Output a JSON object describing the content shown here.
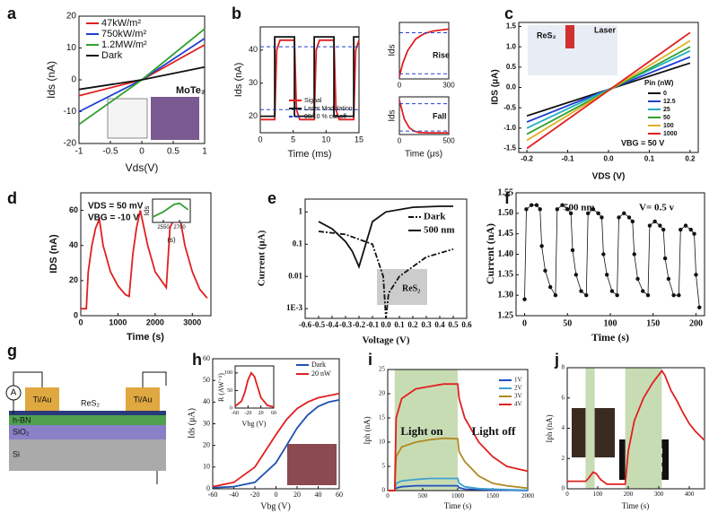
{
  "chart_data": [
    {
      "type": "line",
      "panel": "a",
      "xlabel": "Vds(V)",
      "ylabel": "Ids (nA)",
      "xlim": [
        -1,
        1
      ],
      "ylim": [
        -20,
        20
      ],
      "xticks": [
        -1,
        -0.5,
        0,
        0.5,
        1
      ],
      "yticks": [
        -20,
        -10,
        0,
        10,
        20
      ],
      "legend": "upper left",
      "annotations": [
        "MoTe₂"
      ],
      "series": [
        {
          "name": "47kW/m²",
          "color": "#e02020",
          "x": [
            -1,
            0,
            1
          ],
          "values": [
            -5,
            0,
            11
          ]
        },
        {
          "name": "750kW/m²",
          "color": "#2040d0",
          "x": [
            -1,
            0,
            1
          ],
          "values": [
            -10,
            0,
            13
          ]
        },
        {
          "name": "1.2MW/m²",
          "color": "#30a030",
          "x": [
            -1,
            0,
            1
          ],
          "values": [
            -14,
            0,
            16
          ]
        },
        {
          "name": "Dark",
          "color": "#111111",
          "x": [
            -1,
            0,
            1
          ],
          "values": [
            -3,
            0,
            4
          ]
        }
      ]
    },
    {
      "type": "line",
      "panel": "b",
      "xlabel": "Time (ms)",
      "ylabel": "Ids (nA)",
      "xlim": [
        0,
        15
      ],
      "ylim": [
        15,
        47
      ],
      "xticks": [
        0,
        5,
        10,
        15
      ],
      "yticks": [
        20,
        30,
        40
      ],
      "legend": "lower right",
      "series": [
        {
          "name": "Signal",
          "color": "#e02020",
          "x": [
            0,
            2.2,
            2.5,
            3,
            5.2,
            5.5,
            6,
            8.2,
            8.5,
            9,
            11.2,
            11.5,
            12,
            14.2,
            14.5,
            15
          ],
          "values": [
            19,
            19,
            40,
            43,
            43,
            22,
            19,
            19,
            40,
            43,
            43,
            22,
            19,
            19,
            40,
            43
          ]
        },
        {
          "name": "Laser Modulation",
          "color": "#111111",
          "x": [
            0,
            2.2,
            2.2,
            5.2,
            5.2,
            8.2,
            8.2,
            11.2,
            11.2,
            14.2,
            14.2,
            15
          ],
          "values": [
            20,
            20,
            44,
            44,
            20,
            20,
            44,
            44,
            20,
            20,
            44,
            44
          ]
        },
        {
          "name": "90/10 % cut-off",
          "color": "#2040d0",
          "style": "dashed",
          "levels": [
            22,
            41
          ]
        }
      ]
    },
    {
      "type": "line",
      "ylabel": "Ids",
      "xlim": [
        0,
        300
      ],
      "ylim": [
        0,
        1.1
      ],
      "xticks": [
        0,
        300
      ],
      "annotations": [
        "Rise"
      ],
      "series": [
        {
          "color": "#e02020",
          "x": [
            0,
            20,
            50,
            100,
            150,
            200,
            300
          ],
          "values": [
            0.05,
            0.3,
            0.55,
            0.78,
            0.88,
            0.93,
            0.97
          ]
        },
        {
          "color": "#2040d0",
          "style": "dashed",
          "levels": [
            0.1,
            0.9
          ]
        }
      ]
    },
    {
      "type": "line",
      "xlabel": "Time (μs)",
      "ylabel": "Ids",
      "xlim": [
        0,
        500
      ],
      "ylim": [
        0,
        1.1
      ],
      "xticks": [
        0,
        500
      ],
      "annotations": [
        "Fall"
      ],
      "series": [
        {
          "color": "#e02020",
          "x": [
            0,
            50,
            100,
            150,
            200,
            300,
            500
          ],
          "values": [
            1,
            0.45,
            0.2,
            0.1,
            0.06,
            0.05,
            0.05
          ]
        },
        {
          "color": "#2040d0",
          "style": "dashed",
          "levels": [
            0.1,
            0.9
          ]
        }
      ]
    },
    {
      "type": "line",
      "panel": "c",
      "xlabel": "VDS (V)",
      "ylabel": "IDS (μA)",
      "xlim": [
        -0.22,
        0.22
      ],
      "ylim": [
        -1.6,
        1.6
      ],
      "xticks": [
        -0.2,
        -0.1,
        {
          "value": 0,
          "label": "0.0"
        },
        0.1,
        0.2
      ],
      "yticks": [
        -1.5,
        {
          "value": -1,
          "label": "-1.0"
        },
        -0.5,
        {
          "value": 0,
          "label": "0.0"
        },
        0.5,
        {
          "value": 1,
          "label": "1.0"
        },
        1.5
      ],
      "legend": "right",
      "legend_title": "Pin (nW)",
      "annotations": [
        "ReS₂",
        "Laser",
        "VBG = 50 V"
      ],
      "series": [
        {
          "name": "0",
          "color": "#111111",
          "x": [
            -0.2,
            0.2
          ],
          "values": [
            -0.7,
            0.6
          ]
        },
        {
          "name": "12.5",
          "color": "#2040d0",
          "x": [
            -0.2,
            0.2
          ],
          "values": [
            -0.85,
            0.75
          ]
        },
        {
          "name": "25",
          "color": "#20b0c0",
          "x": [
            -0.2,
            0.2
          ],
          "values": [
            -1,
            0.9
          ]
        },
        {
          "name": "50",
          "color": "#30a030",
          "x": [
            -0.2,
            0.2
          ],
          "values": [
            -1.15,
            1
          ]
        },
        {
          "name": "100",
          "color": "#e0b020",
          "x": [
            -0.2,
            0.2
          ],
          "values": [
            -1.3,
            1.15
          ]
        },
        {
          "name": "1000",
          "color": "#e02020",
          "x": [
            -0.2,
            0.2
          ],
          "values": [
            -1.5,
            1.35
          ]
        }
      ]
    },
    {
      "type": "line",
      "panel": "d",
      "xlabel": "Time (s)",
      "ylabel": "IDS (nA)",
      "xlim": [
        0,
        3500
      ],
      "ylim": [
        0,
        70
      ],
      "xticks": [
        0,
        1000,
        2000,
        3000
      ],
      "yticks": [
        0,
        20,
        40,
        60
      ],
      "annotations": [
        "VDS = 50 mV",
        "VBG = -10 V"
      ],
      "series": [
        {
          "color": "#e02020",
          "x": [
            0,
            150,
            200,
            300,
            400,
            500,
            600,
            800,
            1000,
            1200,
            1300,
            1400,
            1500,
            1600,
            1800,
            2000,
            2300,
            2400,
            2500,
            2600,
            2650,
            2800,
            3000,
            3200,
            3400
          ],
          "values": [
            4,
            4,
            25,
            40,
            50,
            55,
            40,
            25,
            17,
            12,
            11,
            35,
            50,
            60,
            40,
            25,
            16,
            50,
            55,
            60,
            58,
            40,
            25,
            15,
            10
          ]
        }
      ]
    },
    {
      "type": "line",
      "xlabel": "(s)",
      "ylabel": "Ids",
      "xlim": [
        2450,
        2800
      ],
      "ylim": [
        40,
        62
      ],
      "xticks": [
        2550,
        2700
      ],
      "series": [
        {
          "color": "#30a030",
          "x": [
            2450,
            2550,
            2650,
            2700,
            2780
          ],
          "values": [
            45,
            50,
            57,
            58,
            52
          ]
        }
      ]
    },
    {
      "type": "line",
      "panel": "e",
      "xlabel": "Voltage (V)",
      "ylabel": "Current (μA)",
      "ylog": true,
      "xlim": [
        -0.6,
        0.6
      ],
      "ylim": [
        0.0005,
        2.5
      ],
      "xticks": [
        -0.6,
        -0.5,
        -0.4,
        -0.3,
        -0.2,
        -0.1,
        {
          "value": 0,
          "label": "0.0"
        },
        0.1,
        0.2,
        0.3,
        0.4,
        0.5,
        0.6
      ],
      "yticks": [
        {
          "value": 0.001,
          "label": "1E-3"
        },
        0.01,
        0.1,
        1
      ],
      "legend": "upper right",
      "annotations": [
        "ReS₂"
      ],
      "series": [
        {
          "name": "Dark",
          "color": "#111111",
          "style": "dashdot",
          "x": [
            -0.5,
            -0.3,
            -0.1,
            -0.02,
            0,
            0.02,
            0.1,
            0.3,
            0.5
          ],
          "values": [
            0.25,
            0.2,
            0.1,
            0.01,
            0.0005,
            0.003,
            0.01,
            0.04,
            0.07
          ]
        },
        {
          "name": "500 nm",
          "color": "#111111",
          "x": [
            -0.5,
            -0.4,
            -0.3,
            -0.25,
            -0.2,
            -0.15,
            -0.1,
            0,
            0.2,
            0.4,
            0.5
          ],
          "values": [
            0.5,
            0.3,
            0.12,
            0.06,
            0.02,
            0.1,
            0.5,
            1,
            1.4,
            1.5,
            1.5
          ]
        }
      ]
    },
    {
      "type": "line",
      "panel": "f",
      "xlabel": "Time (s)",
      "ylabel": "Current (nA)",
      "markers": true,
      "xlim": [
        -10,
        210
      ],
      "ylim": [
        1.25,
        1.55
      ],
      "xticks": [
        0,
        50,
        100,
        150,
        200
      ],
      "yticks": [
        1.25,
        {
          "value": 1.3,
          "label": "1.30"
        },
        1.35,
        {
          "value": 1.4,
          "label": "1.40"
        },
        1.45,
        {
          "value": 1.5,
          "label": "1.50"
        },
        1.55
      ],
      "annotations": [
        "500 nm",
        "V= 0.5 v"
      ],
      "series": [
        {
          "color": "#111111",
          "x": [
            0,
            2,
            8,
            14,
            18,
            20,
            24,
            30,
            36,
            38,
            44,
            50,
            54,
            56,
            60,
            66,
            72,
            74,
            80,
            86,
            90,
            92,
            96,
            102,
            108,
            110,
            116,
            122,
            126,
            128,
            132,
            138,
            144,
            146,
            152,
            158,
            162,
            164,
            168,
            174,
            180,
            182,
            188,
            194,
            198,
            200,
            204
          ],
          "values": [
            1.29,
            1.51,
            1.52,
            1.52,
            1.51,
            1.42,
            1.36,
            1.32,
            1.3,
            1.51,
            1.52,
            1.51,
            1.5,
            1.41,
            1.35,
            1.31,
            1.3,
            1.5,
            1.51,
            1.5,
            1.49,
            1.4,
            1.35,
            1.31,
            1.3,
            1.49,
            1.5,
            1.49,
            1.48,
            1.4,
            1.34,
            1.31,
            1.3,
            1.47,
            1.48,
            1.47,
            1.46,
            1.39,
            1.34,
            1.3,
            1.3,
            1.46,
            1.47,
            1.46,
            1.45,
            1.35,
            1.27
          ]
        }
      ]
    },
    {
      "type": "line",
      "panel": "h",
      "xlabel": "Vbg (V)",
      "ylabel": "Ids (μA)",
      "xlim": [
        -60,
        60
      ],
      "ylim": [
        0,
        60
      ],
      "xticks": [
        -60,
        -40,
        -20,
        0,
        20,
        40,
        60
      ],
      "yticks": [
        0,
        10,
        20,
        30,
        40,
        50,
        60
      ],
      "legend": "upper right",
      "series": [
        {
          "name": "Dark",
          "color": "#2050b0",
          "x": [
            -60,
            -40,
            -20,
            0,
            10,
            20,
            30,
            40,
            50,
            60
          ],
          "values": [
            0.5,
            1,
            3,
            12,
            20,
            28,
            34,
            38,
            40,
            41
          ]
        },
        {
          "name": "20 nW",
          "color": "#e02020",
          "x": [
            -60,
            -40,
            -20,
            0,
            10,
            20,
            30,
            40,
            50,
            60
          ],
          "values": [
            1,
            3,
            10,
            25,
            32,
            37,
            40,
            42,
            43,
            44
          ]
        }
      ]
    },
    {
      "type": "line",
      "xlabel": "Vbg (V)",
      "ylabel": "R (AW⁻¹)",
      "xlim": [
        -60,
        60
      ],
      "ylim": [
        0,
        120
      ],
      "xticks": [
        -60,
        -20,
        20,
        60
      ],
      "yticks": [
        0,
        50,
        100
      ],
      "series": [
        {
          "color": "#e02020",
          "x": [
            -60,
            -40,
            -30,
            -20,
            -10,
            0,
            10,
            20,
            40,
            60
          ],
          "values": [
            5,
            20,
            45,
            80,
            100,
            90,
            60,
            30,
            8,
            3
          ]
        }
      ]
    },
    {
      "type": "line",
      "panel": "i",
      "xlabel": "Time (s)",
      "ylabel": "Iph (nA)",
      "xlim": [
        0,
        2000
      ],
      "ylim": [
        0,
        25
      ],
      "xticks": [
        0,
        500,
        1000,
        1500,
        2000
      ],
      "yticks": [
        0,
        5,
        10,
        15,
        20,
        25
      ],
      "legend": "upper right",
      "shade": [
        [
          100,
          1000
        ]
      ],
      "annotations": [
        "Light on",
        "Light off"
      ],
      "series": [
        {
          "name": "1V",
          "color": "#2050c0",
          "x": [
            0,
            100,
            120,
            200,
            400,
            600,
            800,
            1000,
            1020,
            1100,
            1300,
            1500,
            1700,
            2000
          ],
          "values": [
            0,
            0,
            0.5,
            0.8,
            1,
            1,
            1,
            1,
            0.6,
            0.3,
            0.2,
            0.1,
            0.1,
            0
          ]
        },
        {
          "name": "2V",
          "color": "#40a0d0",
          "x": [
            0,
            100,
            120,
            200,
            400,
            600,
            800,
            1000,
            1020,
            1100,
            1300,
            1500,
            1700,
            2000
          ],
          "values": [
            0,
            0,
            1.5,
            2,
            2.3,
            2.5,
            2.5,
            2.5,
            1.5,
            0.8,
            0.4,
            0.3,
            0.2,
            0.1
          ]
        },
        {
          "name": "3V",
          "color": "#b08a20",
          "x": [
            0,
            100,
            120,
            200,
            400,
            600,
            800,
            1000,
            1020,
            1100,
            1300,
            1500,
            1700,
            2000
          ],
          "values": [
            0,
            0,
            7,
            9,
            10,
            10.5,
            10.8,
            10.7,
            8,
            6,
            3,
            1.5,
            1,
            0.5
          ]
        },
        {
          "name": "4V",
          "color": "#e02020",
          "x": [
            0,
            100,
            120,
            200,
            400,
            600,
            800,
            1000,
            1020,
            1100,
            1300,
            1500,
            1700,
            2000
          ],
          "values": [
            0,
            0,
            15,
            19,
            21,
            21.5,
            22,
            22,
            19,
            15,
            10,
            7,
            5,
            4
          ]
        }
      ]
    },
    {
      "type": "line",
      "panel": "j",
      "xlabel": "Time (s)",
      "ylabel": "Iph (nA)",
      "xlim": [
        0,
        450
      ],
      "ylim": [
        0,
        8
      ],
      "xticks": [
        0,
        100,
        200,
        300,
        400
      ],
      "yticks": [
        0,
        2,
        4,
        6,
        8
      ],
      "shade": [
        [
          60,
          90
        ],
        [
          190,
          310
        ]
      ],
      "series": [
        {
          "color": "#e02020",
          "x": [
            0,
            60,
            70,
            85,
            95,
            110,
            130,
            190,
            200,
            220,
            250,
            280,
            310,
            320,
            340,
            360,
            380,
            400,
            420,
            450
          ],
          "values": [
            0.5,
            0.5,
            0.7,
            1.1,
            1,
            0.6,
            0.3,
            0.3,
            2.5,
            4.5,
            6,
            7,
            7.8,
            7.5,
            6.5,
            5.8,
            5,
            4.3,
            3.8,
            3.2
          ]
        }
      ]
    }
  ],
  "diagram": {
    "panel": "g",
    "labels": {
      "ammeter": "A",
      "contact_left": "Ti/Au",
      "channel": "ReS₂",
      "contact_right": "Ti/Au",
      "hbn": "h-BN",
      "oxide": "SiO₂",
      "substrate": "Si"
    }
  }
}
